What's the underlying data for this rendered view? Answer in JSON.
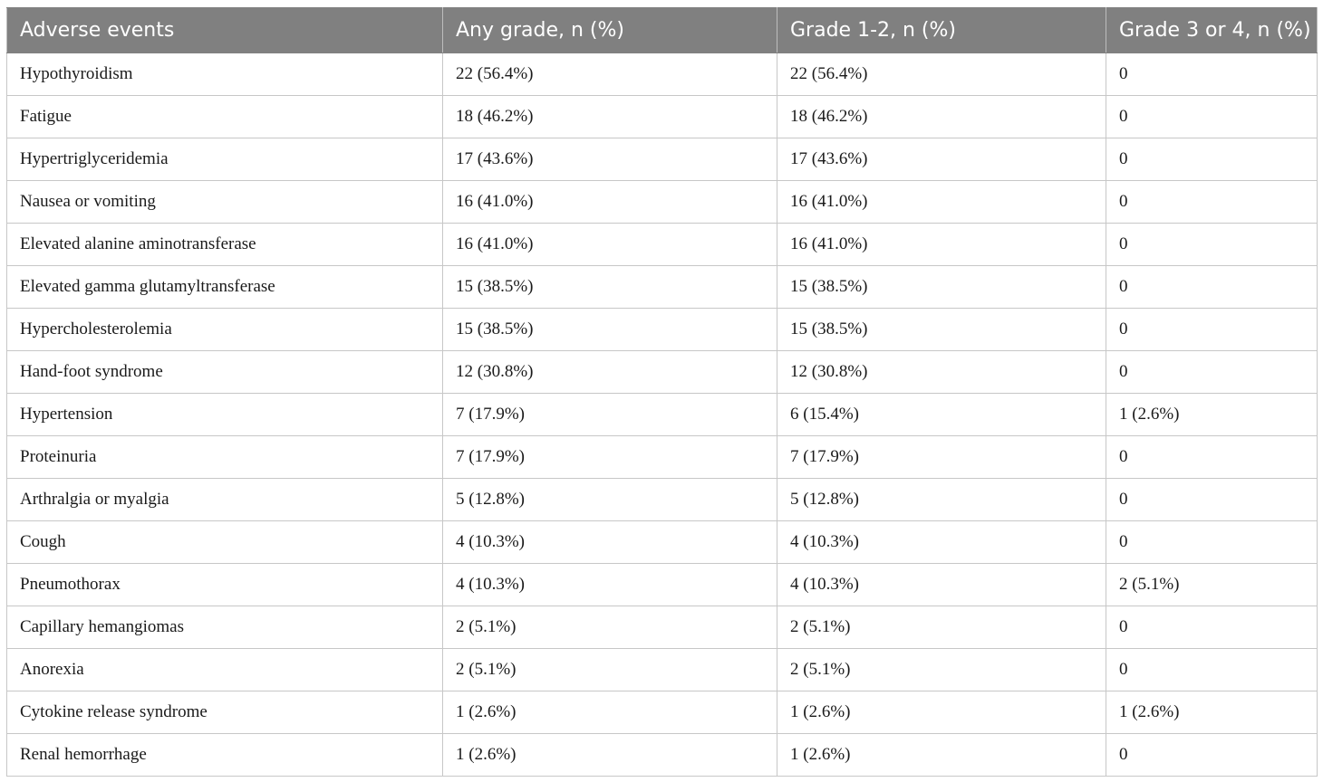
{
  "table": {
    "headers": [
      "Adverse events",
      "Any grade, n (%)",
      "Grade 1-2, n (%)",
      "Grade 3 or 4, n (%)"
    ],
    "rows": [
      [
        "Hypothyroidism",
        "22 (56.4%)",
        "22 (56.4%)",
        "0"
      ],
      [
        "Fatigue",
        "18 (46.2%)",
        "18 (46.2%)",
        "0"
      ],
      [
        "Hypertriglyceridemia",
        "17 (43.6%)",
        "17 (43.6%)",
        "0"
      ],
      [
        "Nausea or vomiting",
        "16 (41.0%)",
        "16 (41.0%)",
        "0"
      ],
      [
        "Elevated alanine aminotransferase",
        "16 (41.0%)",
        "16 (41.0%)",
        "0"
      ],
      [
        "Elevated gamma glutamyltransferase",
        "15 (38.5%)",
        "15 (38.5%)",
        "0"
      ],
      [
        "Hypercholesterolemia",
        "15 (38.5%)",
        "15 (38.5%)",
        "0"
      ],
      [
        "Hand-foot syndrome",
        "12 (30.8%)",
        "12 (30.8%)",
        "0"
      ],
      [
        "Hypertension",
        "7 (17.9%)",
        "6 (15.4%)",
        "1 (2.6%)"
      ],
      [
        "Proteinuria",
        "7 (17.9%)",
        "7 (17.9%)",
        "0"
      ],
      [
        "Arthralgia or myalgia",
        "5 (12.8%)",
        "5 (12.8%)",
        "0"
      ],
      [
        "Cough",
        "4 (10.3%)",
        "4 (10.3%)",
        "0"
      ],
      [
        "Pneumothorax",
        "4 (10.3%)",
        "4 (10.3%)",
        "2 (5.1%)"
      ],
      [
        "Capillary hemangiomas",
        "2 (5.1%)",
        "2 (5.1%)",
        "0"
      ],
      [
        "Anorexia",
        "2 (5.1%)",
        "2 (5.1%)",
        "0"
      ],
      [
        "Cytokine release syndrome",
        "1 (2.6%)",
        "1 (2.6%)",
        "1 (2.6%)"
      ],
      [
        "Renal hemorrhage",
        "1 (2.6%)",
        "1 (2.6%)",
        "0"
      ]
    ]
  },
  "colors": {
    "header_background": "#808080",
    "header_text": "#ffffff",
    "grid_line": "#c7c7c7",
    "body_text": "#1a1a1a"
  }
}
